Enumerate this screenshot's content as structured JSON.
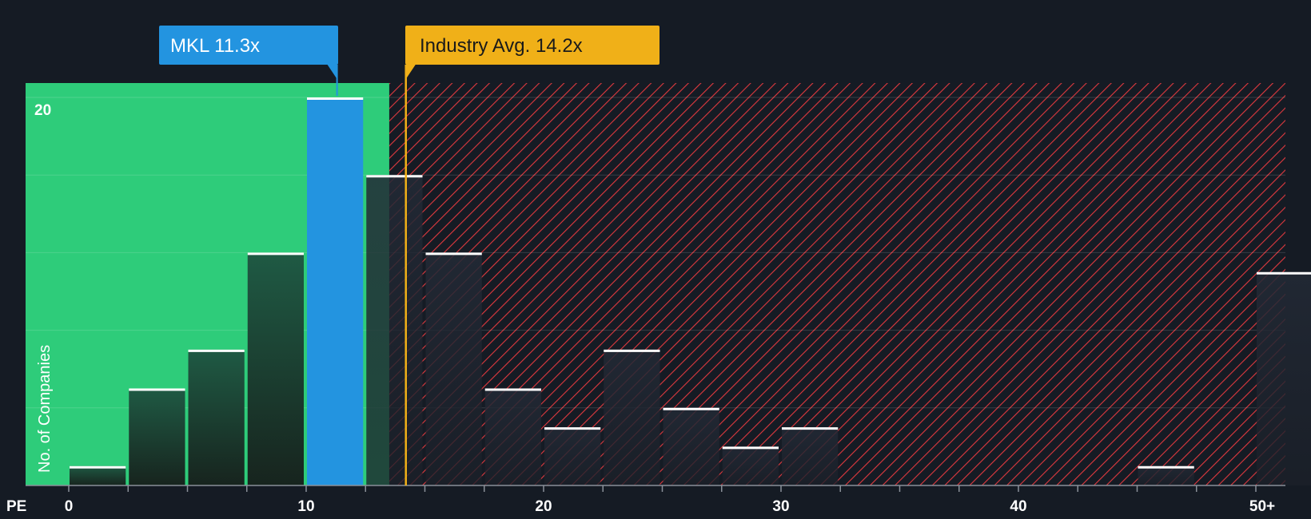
{
  "colors": {
    "background": "#151b24",
    "undervalued_zone": "#2ecc7a",
    "overvalued_hatch": "#e0393e",
    "subject_bar": "#2394e0",
    "industry_line": "#f0b018",
    "bar_cap": "#ffffff"
  },
  "chart_data": {
    "type": "bar",
    "title": "",
    "xlabel": "PE",
    "ylabel": "No. of Companies",
    "x_ticks": [
      "0",
      "10",
      "20",
      "30",
      "40",
      "50+"
    ],
    "y_ticks": [
      "20"
    ],
    "ylim": [
      0,
      20.7
    ],
    "xlim": [
      0,
      51.5
    ],
    "bin_width": 2.5,
    "bins": [
      {
        "start": 0,
        "value": 1
      },
      {
        "start": 2.5,
        "value": 5
      },
      {
        "start": 5,
        "value": 7
      },
      {
        "start": 7.5,
        "value": 12
      },
      {
        "start": 10,
        "value": 20
      },
      {
        "start": 12.5,
        "value": 16
      },
      {
        "start": 15,
        "value": 12
      },
      {
        "start": 17.5,
        "value": 5
      },
      {
        "start": 20,
        "value": 3
      },
      {
        "start": 22.5,
        "value": 7
      },
      {
        "start": 25,
        "value": 4
      },
      {
        "start": 27.5,
        "value": 2
      },
      {
        "start": 30,
        "value": 3
      },
      {
        "start": 45,
        "value": 1
      },
      {
        "start": 50,
        "value": 11
      }
    ],
    "subject": {
      "label": "MKL 11.3x",
      "value": 11.3
    },
    "industry_avg": {
      "label": "Industry Avg. 14.2x",
      "value": 14.2
    },
    "undervalued_until": 13.5
  }
}
